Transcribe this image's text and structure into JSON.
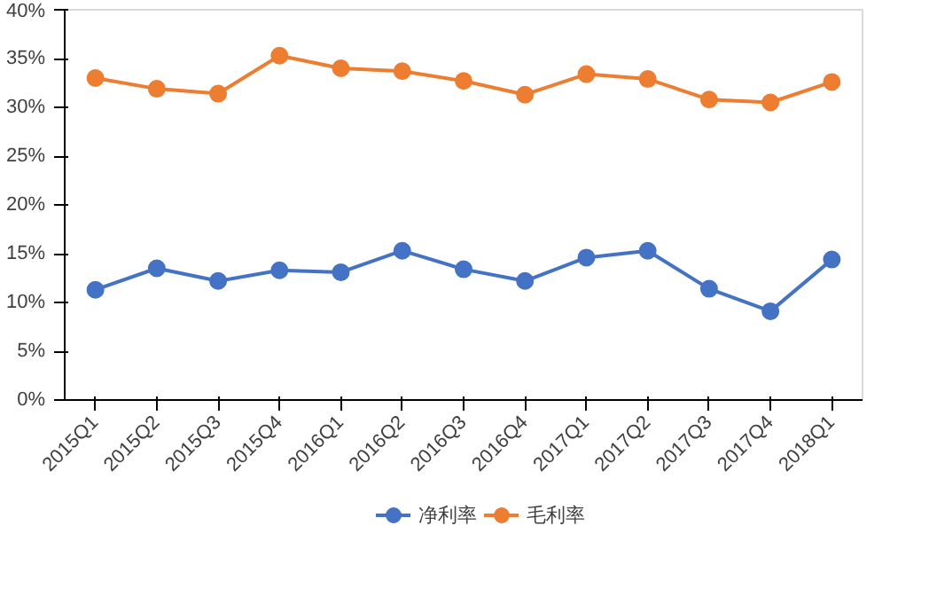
{
  "chart_data": {
    "type": "line",
    "categories": [
      "2015Q1",
      "2015Q2",
      "2015Q3",
      "2015Q4",
      "2016Q1",
      "2016Q2",
      "2016Q3",
      "2016Q4",
      "2017Q1",
      "2017Q2",
      "2017Q3",
      "2017Q4",
      "2018Q1"
    ],
    "series": [
      {
        "name": "净利率",
        "color": "#4472c4",
        "values": [
          11.3,
          13.5,
          12.2,
          13.3,
          13.1,
          15.3,
          13.4,
          12.2,
          14.6,
          15.3,
          11.4,
          9.1,
          14.4
        ]
      },
      {
        "name": "毛利率",
        "color": "#ed7d31",
        "values": [
          33.0,
          31.9,
          31.4,
          35.3,
          34.0,
          33.7,
          32.7,
          31.3,
          33.4,
          32.9,
          30.8,
          30.5,
          32.6
        ]
      }
    ],
    "ylim": [
      0,
      40
    ],
    "yticks": [
      {
        "value": 0,
        "label": "0%"
      },
      {
        "value": 5,
        "label": "5%"
      },
      {
        "value": 10,
        "label": "10%"
      },
      {
        "value": 15,
        "label": "15%"
      },
      {
        "value": 20,
        "label": "20%"
      },
      {
        "value": 25,
        "label": "25%"
      },
      {
        "value": 30,
        "label": "30%"
      },
      {
        "value": 35,
        "label": "35%"
      },
      {
        "value": 40,
        "label": "40%"
      }
    ],
    "grid": false,
    "legend": "bottom",
    "marker": "circle",
    "line_style": "solid"
  }
}
